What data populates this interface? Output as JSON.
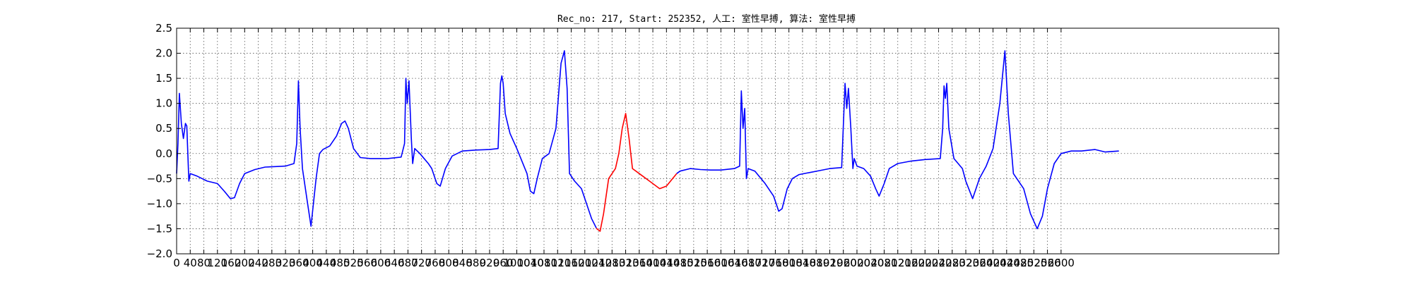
{
  "chart_data": {
    "type": "line",
    "title": "Rec_no: 217, Start: 252352, 人工: 室性早搏, 算法: 室性早搏",
    "xlabel": "",
    "ylabel": "",
    "xlim": [
      0,
      3240
    ],
    "ylim": [
      -2.0,
      2.5
    ],
    "grid": true,
    "legend": "none",
    "colors": {
      "normal": "#0000ff",
      "highlight": "#ff0000"
    },
    "x_ticks": [
      "0",
      "40",
      "80",
      "120",
      "160",
      "200",
      "240",
      "280",
      "320",
      "360",
      "400",
      "440",
      "480",
      "520",
      "560",
      "600",
      "640",
      "680",
      "720",
      "760",
      "800",
      "840",
      "880",
      "920",
      "960",
      "1000",
      "1040",
      "1080",
      "1120",
      "1160",
      "1200",
      "1240",
      "1280",
      "1320",
      "1360",
      "1400",
      "1440",
      "1480",
      "1520",
      "1560",
      "1600",
      "1640",
      "1680",
      "1720",
      "1760",
      "1800",
      "1840",
      "1880",
      "1920",
      "1960",
      "2000",
      "2040",
      "2080",
      "2120",
      "2160",
      "2200",
      "2240",
      "2280",
      "2320",
      "2360",
      "2400",
      "2440",
      "2480",
      "2520",
      "2560",
      "2600"
    ],
    "y_ticks": [
      "2.5",
      "2.0",
      "1.5",
      "1.0",
      "0.5",
      "0.0",
      "−0.5",
      "−1.0",
      "−1.5",
      "−2.0"
    ],
    "highlight_range": [
      1234,
      1470
    ],
    "series": [
      {
        "points": [
          [
            0,
            -0.4
          ],
          [
            4,
            0.2
          ],
          [
            8,
            1.2
          ],
          [
            14,
            0.6
          ],
          [
            20,
            0.3
          ],
          [
            26,
            0.6
          ],
          [
            30,
            0.55
          ],
          [
            36,
            -0.55
          ],
          [
            40,
            -0.4
          ],
          [
            60,
            -0.45
          ],
          [
            90,
            -0.55
          ],
          [
            120,
            -0.6
          ],
          [
            140,
            -0.75
          ],
          [
            158,
            -0.9
          ],
          [
            170,
            -0.88
          ],
          [
            185,
            -0.6
          ],
          [
            200,
            -0.4
          ],
          [
            230,
            -0.32
          ],
          [
            260,
            -0.27
          ],
          [
            290,
            -0.26
          ],
          [
            320,
            -0.25
          ],
          [
            345,
            -0.2
          ],
          [
            353,
            0.2
          ],
          [
            358,
            1.45
          ],
          [
            363,
            0.5
          ],
          [
            370,
            -0.3
          ],
          [
            385,
            -1.0
          ],
          [
            395,
            -1.45
          ],
          [
            410,
            -0.5
          ],
          [
            420,
            0.0
          ],
          [
            430,
            0.08
          ],
          [
            450,
            0.15
          ],
          [
            470,
            0.35
          ],
          [
            485,
            0.6
          ],
          [
            495,
            0.65
          ],
          [
            505,
            0.5
          ],
          [
            520,
            0.1
          ],
          [
            540,
            -0.08
          ],
          [
            570,
            -0.1
          ],
          [
            620,
            -0.1
          ],
          [
            660,
            -0.07
          ],
          [
            670,
            0.2
          ],
          [
            674,
            1.5
          ],
          [
            678,
            1.0
          ],
          [
            683,
            1.45
          ],
          [
            690,
            0.3
          ],
          [
            694,
            -0.2
          ],
          [
            700,
            0.1
          ],
          [
            715,
            0.0
          ],
          [
            740,
            -0.2
          ],
          [
            750,
            -0.3
          ],
          [
            765,
            -0.6
          ],
          [
            775,
            -0.65
          ],
          [
            790,
            -0.3
          ],
          [
            810,
            -0.05
          ],
          [
            840,
            0.05
          ],
          [
            880,
            0.07
          ],
          [
            920,
            0.08
          ],
          [
            945,
            0.1
          ],
          [
            952,
            1.4
          ],
          [
            956,
            1.55
          ],
          [
            960,
            1.4
          ],
          [
            966,
            0.8
          ],
          [
            980,
            0.4
          ],
          [
            1000,
            0.1
          ],
          [
            1030,
            -0.4
          ],
          [
            1040,
            -0.75
          ],
          [
            1050,
            -0.8
          ],
          [
            1060,
            -0.5
          ],
          [
            1075,
            -0.1
          ],
          [
            1095,
            0.0
          ],
          [
            1115,
            0.5
          ],
          [
            1130,
            1.8
          ],
          [
            1140,
            2.05
          ],
          [
            1148,
            1.3
          ],
          [
            1155,
            -0.4
          ],
          [
            1170,
            -0.55
          ],
          [
            1190,
            -0.7
          ],
          [
            1220,
            -1.3
          ],
          [
            1235,
            -1.5
          ],
          [
            1245,
            -1.55
          ],
          [
            1255,
            -1.2
          ],
          [
            1270,
            -0.5
          ],
          [
            1290,
            -0.3
          ],
          [
            1300,
            0.0
          ],
          [
            1310,
            0.5
          ],
          [
            1320,
            0.8
          ],
          [
            1330,
            0.3
          ],
          [
            1340,
            -0.3
          ],
          [
            1360,
            -0.4
          ],
          [
            1390,
            -0.55
          ],
          [
            1420,
            -0.7
          ],
          [
            1440,
            -0.65
          ],
          [
            1470,
            -0.4
          ],
          [
            1480,
            -0.35
          ],
          [
            1510,
            -0.3
          ],
          [
            1540,
            -0.32
          ],
          [
            1570,
            -0.33
          ],
          [
            1600,
            -0.33
          ],
          [
            1640,
            -0.3
          ],
          [
            1655,
            -0.25
          ],
          [
            1660,
            1.25
          ],
          [
            1665,
            0.5
          ],
          [
            1670,
            0.9
          ],
          [
            1675,
            -0.5
          ],
          [
            1680,
            -0.3
          ],
          [
            1700,
            -0.35
          ],
          [
            1730,
            -0.6
          ],
          [
            1755,
            -0.85
          ],
          [
            1770,
            -1.15
          ],
          [
            1780,
            -1.1
          ],
          [
            1795,
            -0.7
          ],
          [
            1810,
            -0.5
          ],
          [
            1830,
            -0.42
          ],
          [
            1860,
            -0.38
          ],
          [
            1890,
            -0.34
          ],
          [
            1920,
            -0.3
          ],
          [
            1955,
            -0.28
          ],
          [
            1965,
            1.4
          ],
          [
            1970,
            0.9
          ],
          [
            1975,
            1.3
          ],
          [
            1982,
            0.5
          ],
          [
            1988,
            -0.3
          ],
          [
            1992,
            -0.1
          ],
          [
            2000,
            -0.25
          ],
          [
            2020,
            -0.3
          ],
          [
            2040,
            -0.45
          ],
          [
            2055,
            -0.7
          ],
          [
            2065,
            -0.85
          ],
          [
            2080,
            -0.6
          ],
          [
            2095,
            -0.3
          ],
          [
            2120,
            -0.2
          ],
          [
            2160,
            -0.15
          ],
          [
            2200,
            -0.12
          ],
          [
            2245,
            -0.1
          ],
          [
            2252,
            0.5
          ],
          [
            2256,
            1.35
          ],
          [
            2260,
            1.1
          ],
          [
            2264,
            1.4
          ],
          [
            2270,
            0.5
          ],
          [
            2285,
            -0.1
          ],
          [
            2310,
            -0.3
          ],
          [
            2320,
            -0.55
          ],
          [
            2340,
            -0.9
          ],
          [
            2360,
            -0.5
          ],
          [
            2380,
            -0.25
          ],
          [
            2400,
            0.1
          ],
          [
            2420,
            1.0
          ],
          [
            2435,
            2.05
          ],
          [
            2445,
            0.8
          ],
          [
            2460,
            -0.4
          ],
          [
            2490,
            -0.7
          ],
          [
            2510,
            -1.2
          ],
          [
            2530,
            -1.5
          ],
          [
            2545,
            -1.25
          ],
          [
            2560,
            -0.7
          ],
          [
            2580,
            -0.2
          ],
          [
            2600,
            0.0
          ],
          [
            2630,
            0.05
          ],
          [
            2660,
            0.05
          ],
          [
            2700,
            0.08
          ],
          [
            2730,
            0.03
          ],
          [
            2770,
            0.05
          ]
        ]
      }
    ]
  }
}
